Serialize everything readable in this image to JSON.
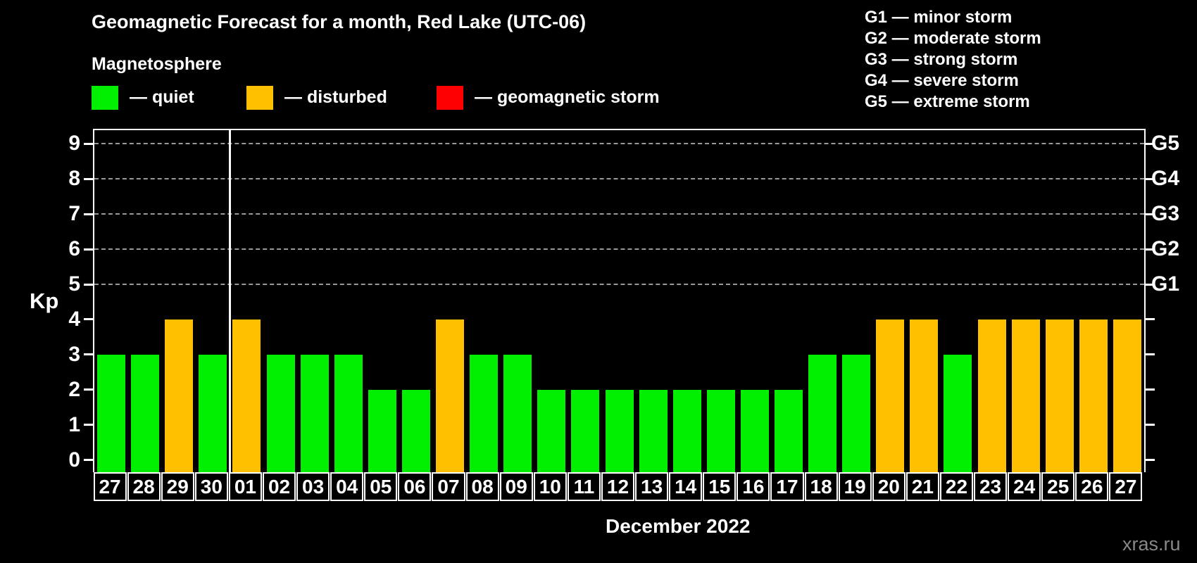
{
  "title": "Geomagnetic Forecast for a month, Red Lake (UTC-06)",
  "subtitle": "Magnetosphere",
  "legend": {
    "items": [
      {
        "key": "quiet",
        "label": "— quiet",
        "color": "#00ee00",
        "x": 130
      },
      {
        "key": "disturbed",
        "label": "— disturbed",
        "color": "#ffc000",
        "x": 350
      },
      {
        "key": "storm",
        "label": "— geomagnetic storm",
        "color": "#ff0000",
        "x": 620
      }
    ]
  },
  "g_scale_legend": [
    "G1 — minor storm",
    "G2 — moderate storm",
    "G3 — strong storm",
    "G4 — severe storm",
    "G5 — extreme storm"
  ],
  "watermark": "xras.ru",
  "chart_data": {
    "type": "bar",
    "title": "Geomagnetic Forecast for a month, Red Lake (UTC-06)",
    "xlabel": "December 2022",
    "ylabel": "Kp",
    "ylim": [
      0,
      9.4
    ],
    "yticks": [
      0,
      1,
      2,
      3,
      4,
      5,
      6,
      7,
      8,
      9
    ],
    "gridlines_at": [
      5,
      6,
      7,
      8,
      9
    ],
    "grid": "dashed horizontal at Kp 5-9 only",
    "legend_position": "top",
    "right_axis": [
      {
        "label": "G1",
        "value": 5
      },
      {
        "label": "G2",
        "value": 6
      },
      {
        "label": "G3",
        "value": 7
      },
      {
        "label": "G4",
        "value": 8
      },
      {
        "label": "G5",
        "value": 9
      }
    ],
    "month_separator_after_index": 3,
    "categories": [
      "27",
      "28",
      "29",
      "30",
      "01",
      "02",
      "03",
      "04",
      "05",
      "06",
      "07",
      "08",
      "09",
      "10",
      "11",
      "12",
      "13",
      "14",
      "15",
      "16",
      "17",
      "18",
      "19",
      "20",
      "21",
      "22",
      "23",
      "24",
      "25",
      "26",
      "27"
    ],
    "values": [
      3,
      3,
      4,
      3,
      4,
      3,
      3,
      3,
      2,
      2,
      4,
      3,
      3,
      2,
      2,
      2,
      2,
      2,
      2,
      2,
      2,
      3,
      3,
      4,
      4,
      3,
      4,
      4,
      4,
      4,
      4
    ],
    "states": [
      "quiet",
      "quiet",
      "disturbed",
      "quiet",
      "disturbed",
      "quiet",
      "quiet",
      "quiet",
      "quiet",
      "quiet",
      "disturbed",
      "quiet",
      "quiet",
      "quiet",
      "quiet",
      "quiet",
      "quiet",
      "quiet",
      "quiet",
      "quiet",
      "quiet",
      "quiet",
      "quiet",
      "disturbed",
      "disturbed",
      "quiet",
      "disturbed",
      "disturbed",
      "disturbed",
      "disturbed",
      "disturbed"
    ],
    "colors": {
      "quiet": "#00ee00",
      "disturbed": "#ffc000",
      "storm": "#ff0000"
    }
  }
}
